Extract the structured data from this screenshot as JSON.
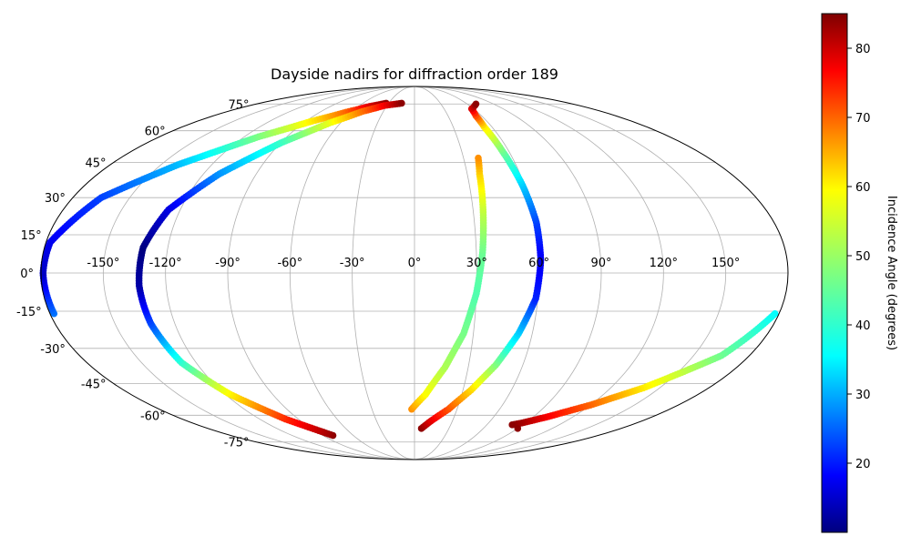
{
  "chart_data": {
    "type": "scatter",
    "projection": "mollweide",
    "title": "Dayside nadirs for diffraction order 189",
    "lon_ticks": [
      -150,
      -120,
      -90,
      -60,
      -30,
      0,
      30,
      60,
      90,
      120,
      150
    ],
    "lat_ticks": [
      -75,
      -60,
      -45,
      -30,
      -15,
      0,
      15,
      30,
      45,
      60,
      75
    ],
    "lon_tick_labels": [
      "-150°",
      "-120°",
      "-90°",
      "-60°",
      "-30°",
      "0°",
      "30°",
      "60°",
      "90°",
      "120°",
      "150°"
    ],
    "lat_tick_labels": [
      "-75°",
      "-60°",
      "-45°",
      "-30°",
      "-15°",
      "0°",
      "15°",
      "30°",
      "45°",
      "60°",
      "75°"
    ],
    "grid": true,
    "colormap": "jet",
    "colorbar": {
      "label": "Incidence Angle (degrees)",
      "range": [
        10,
        85
      ],
      "ticks": [
        20,
        30,
        40,
        50,
        60,
        70,
        80
      ],
      "tick_labels": [
        "20",
        "30",
        "40",
        "50",
        "60",
        "70",
        "80"
      ],
      "placement": "right"
    },
    "series": [
      {
        "points": [
          {
            "lon": -178,
            "lat": -16,
            "inc": 28
          },
          {
            "lon": -179,
            "lat": 0,
            "inc": 15
          },
          {
            "lon": -178,
            "lat": 12,
            "inc": 18
          },
          {
            "lon": -165,
            "lat": 30,
            "inc": 24
          },
          {
            "lon": -140,
            "lat": 44,
            "inc": 33
          },
          {
            "lon": -110,
            "lat": 57,
            "inc": 47
          },
          {
            "lon": -85,
            "lat": 65,
            "inc": 58
          },
          {
            "lon": -65,
            "lat": 70,
            "inc": 68
          },
          {
            "lon": -48,
            "lat": 73.5,
            "inc": 78
          },
          {
            "lon": -33,
            "lat": 75.5,
            "inc": 84
          }
        ]
      },
      {
        "points": [
          {
            "lon": -80,
            "lat": -71,
            "inc": 84
          },
          {
            "lon": -100,
            "lat": -62,
            "inc": 73
          },
          {
            "lon": -117,
            "lat": -50,
            "inc": 58
          },
          {
            "lon": -128,
            "lat": -36,
            "inc": 42
          },
          {
            "lon": -132,
            "lat": -20,
            "inc": 25
          },
          {
            "lon": -133,
            "lat": -5,
            "inc": 13
          },
          {
            "lon": -132,
            "lat": 10,
            "inc": 10
          },
          {
            "lon": -126,
            "lat": 25,
            "inc": 17
          },
          {
            "lon": -111,
            "lat": 40,
            "inc": 30
          },
          {
            "lon": -90,
            "lat": 54,
            "inc": 42
          },
          {
            "lon": -69,
            "lat": 64,
            "inc": 55
          },
          {
            "lon": -50,
            "lat": 70.5,
            "inc": 67
          },
          {
            "lon": -33,
            "lat": 74,
            "inc": 76
          },
          {
            "lon": -15,
            "lat": 75.5,
            "inc": 84
          }
        ]
      },
      {
        "points": [
          {
            "lon": -2,
            "lat": -57,
            "inc": 65
          },
          {
            "lon": 7,
            "lat": -50,
            "inc": 57
          },
          {
            "lon": 17,
            "lat": -38,
            "inc": 51
          },
          {
            "lon": 25,
            "lat": -24,
            "inc": 47
          },
          {
            "lon": 30,
            "lat": -8,
            "inc": 44
          },
          {
            "lon": 33,
            "lat": 8,
            "inc": 46
          },
          {
            "lon": 35,
            "lat": 24,
            "inc": 52
          },
          {
            "lon": 37,
            "lat": 40,
            "inc": 60
          },
          {
            "lon": 39,
            "lat": 47,
            "inc": 65
          }
        ]
      },
      {
        "points": [
          {
            "lon": 6,
            "lat": -67,
            "inc": 84
          },
          {
            "lon": 13,
            "lat": -63,
            "inc": 78
          },
          {
            "lon": 24,
            "lat": -57,
            "inc": 70
          },
          {
            "lon": 35,
            "lat": -48,
            "inc": 60
          },
          {
            "lon": 45,
            "lat": -37,
            "inc": 48
          },
          {
            "lon": 53,
            "lat": -24,
            "inc": 35
          },
          {
            "lon": 59,
            "lat": -10,
            "inc": 22
          },
          {
            "lon": 61,
            "lat": 5,
            "inc": 18
          },
          {
            "lon": 61,
            "lat": 20,
            "inc": 24
          },
          {
            "lon": 59,
            "lat": 35,
            "inc": 34
          },
          {
            "lon": 56,
            "lat": 50,
            "inc": 46
          },
          {
            "lon": 54,
            "lat": 62,
            "inc": 58
          },
          {
            "lon": 55,
            "lat": 68,
            "inc": 70
          },
          {
            "lon": 58,
            "lat": 72,
            "inc": 78
          },
          {
            "lon": 70,
            "lat": 75,
            "inc": 84
          }
        ]
      },
      {
        "points": [
          {
            "lon": 178,
            "lat": -16,
            "inc": 38
          },
          {
            "lon": 165,
            "lat": -33,
            "inc": 46
          },
          {
            "lon": 140,
            "lat": -47,
            "inc": 58
          },
          {
            "lon": 120,
            "lat": -55,
            "inc": 68
          },
          {
            "lon": 100,
            "lat": -61,
            "inc": 76
          },
          {
            "lon": 87,
            "lat": -64,
            "inc": 82
          },
          {
            "lon": 81,
            "lat": -65,
            "inc": 84
          }
        ]
      },
      {
        "points": [
          {
            "lon": 90,
            "lat": -67,
            "inc": 84
          }
        ]
      }
    ]
  }
}
